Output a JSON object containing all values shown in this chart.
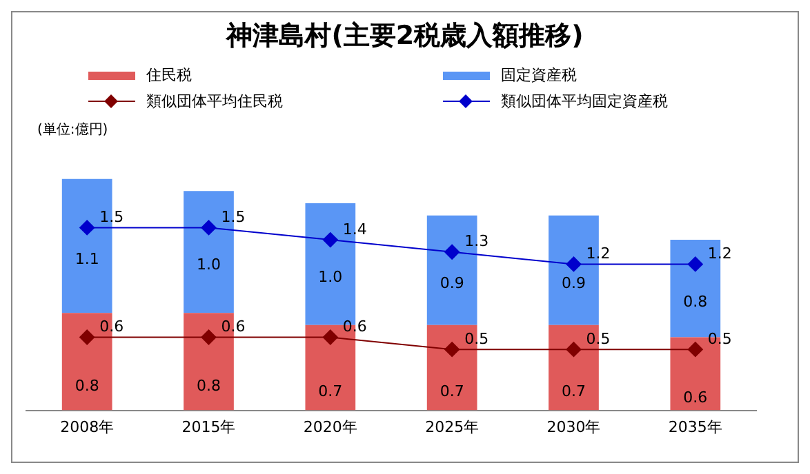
{
  "chart_data": {
    "type": "bar",
    "title": "神津島村(主要2税歳入額推移)",
    "annotations": [
      "(単位:億円)"
    ],
    "categories": [
      "2008年",
      "2015年",
      "2020年",
      "2025年",
      "2030年",
      "2035年"
    ],
    "stacked": true,
    "legend": "top",
    "marker": "diamond",
    "series": [
      {
        "name": "住民税",
        "color": "#e05a5a",
        "values": [
          0.8,
          0.8,
          0.7,
          0.7,
          0.7,
          0.6
        ],
        "value_labels": [
          "0.8",
          "0.8",
          "0.7",
          "0.7",
          "0.7",
          "0.6"
        ]
      },
      {
        "name": "固定資産税",
        "color": "#5a96f5",
        "values": [
          1.1,
          1.0,
          1.0,
          0.9,
          0.9,
          0.8
        ],
        "value_labels": [
          "1.1",
          "1.0",
          "1.0",
          "0.9",
          "0.9",
          "0.8"
        ]
      },
      {
        "name": "類似団体平均住民税",
        "type": "line",
        "color": "#800000",
        "values": [
          0.6,
          0.6,
          0.6,
          0.5,
          0.5,
          0.5
        ],
        "value_labels": [
          "0.6",
          "0.6",
          "0.6",
          "0.5",
          "0.5",
          "0.5"
        ]
      },
      {
        "name": "類似団体平均固定資産税",
        "type": "line",
        "color": "#0000cc",
        "values": [
          1.5,
          1.5,
          1.4,
          1.3,
          1.2,
          1.2
        ],
        "value_labels": [
          "1.5",
          "1.5",
          "1.4",
          "1.3",
          "1.2",
          "1.2"
        ]
      }
    ]
  }
}
